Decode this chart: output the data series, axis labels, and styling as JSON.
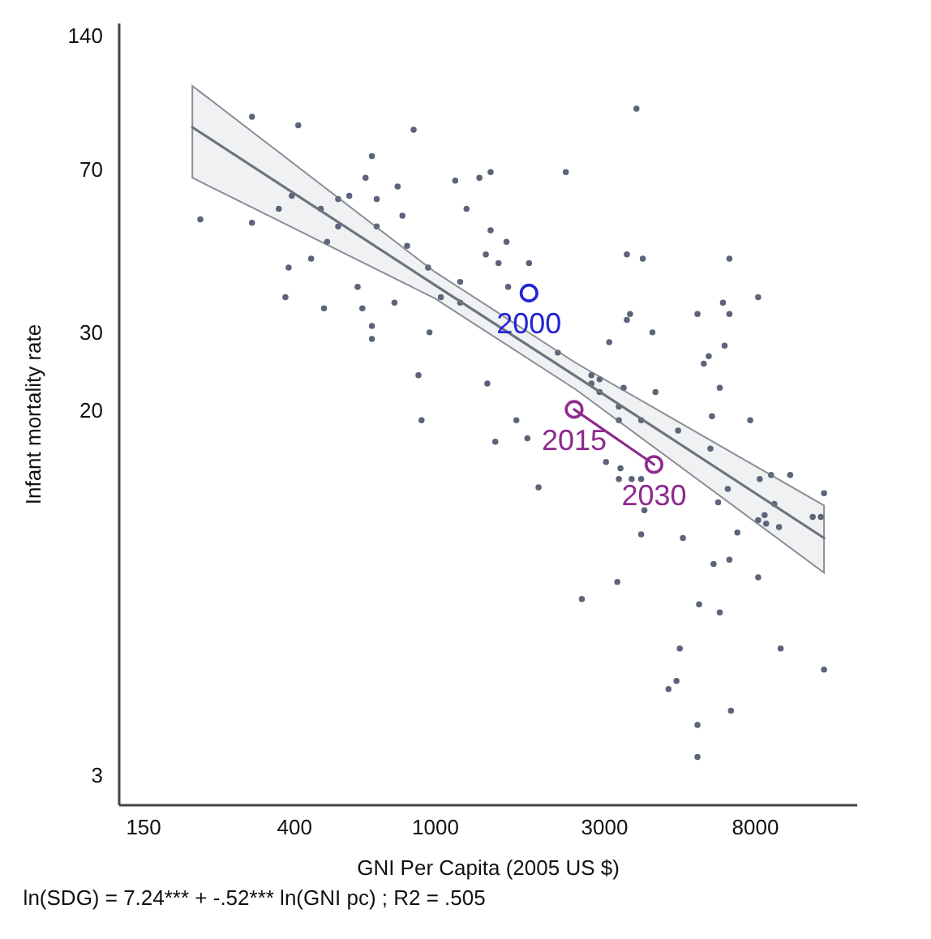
{
  "chart_data": {
    "type": "scatter",
    "xlabel": "GNI Per Capita (2005 US $)",
    "ylabel": "Infant mortality rate",
    "log": "xy",
    "grid": false,
    "marker": "circle",
    "xlim": [
      128,
      15500
    ],
    "xticks": [
      150,
      400,
      1000,
      3000,
      8000
    ],
    "ylim": [
      2.58,
      150
    ],
    "yticks": [
      3,
      20,
      30,
      70,
      140
    ],
    "annotations": [
      "ln(SDG) = 7.24*** + -.52*** ln(GNI pc) ; R2 = .505",
      {
        "text": "2000",
        "x": 1846,
        "y": 36.8
      },
      {
        "text": "2015",
        "x": 2475,
        "y": 20.1
      },
      {
        "text": "2030",
        "x": 4160,
        "y": 15.1
      }
    ],
    "series": [
      {
        "color": "#5b6479",
        "x": [
          305,
          412,
          872,
          665,
          638,
          786,
          1143,
          1337,
          1438,
          1230,
          218,
          305,
          363,
          395,
          477,
          534,
          574,
          686,
          534,
          686,
          811,
          497,
          836,
          1438,
          1595,
          1394,
          1514,
          387,
          448,
          958,
          1180,
          606,
          379,
          487,
          625,
          770,
          1041,
          1180,
          665,
          665,
          967,
          900,
          1408,
          918,
          1483,
          1700,
          3711,
          2345,
          1846,
          3487,
          3867,
          6790,
          1612,
          8186,
          6512,
          6790,
          5518,
          3560,
          3487,
          4117,
          3109,
          2226,
          6582,
          5937,
          5750,
          2770,
          2920,
          2770,
          3415,
          2920,
          6378,
          4200,
          3310,
          6063,
          7775,
          3827,
          3310,
          4866,
          1827,
          6000,
          3044,
          3345,
          3597,
          3827,
          3310,
          8270,
          8900,
          10080,
          1964,
          12560,
          6720,
          6311,
          9094,
          3907,
          8534,
          8186,
          8623,
          9376,
          11670,
          12300,
          7150,
          3827,
          5020,
          6126,
          6790,
          8186,
          3277,
          2602,
          5576,
          6378,
          4917,
          9474,
          12560,
          4815,
          4570,
          6859,
          5518,
          5518
        ],
        "values": [
          92,
          88,
          86,
          75,
          67,
          64,
          66,
          67,
          69,
          57,
          54,
          53,
          57,
          61,
          57,
          60,
          61,
          60,
          52,
          52,
          55,
          48,
          47,
          51,
          48,
          45,
          43,
          42,
          44,
          42,
          39,
          38,
          36,
          34,
          34,
          35,
          36,
          35,
          31,
          29,
          30,
          24,
          23,
          19,
          17,
          19,
          96,
          69,
          43,
          45,
          44,
          44,
          38,
          36,
          35,
          33,
          33,
          33,
          32,
          30,
          28.5,
          27,
          28,
          26.5,
          25.5,
          24,
          23.5,
          23,
          22.5,
          22,
          22.5,
          22,
          20.4,
          19.4,
          19,
          19,
          19,
          18,
          17.3,
          16.4,
          15.3,
          14.8,
          14,
          14,
          14,
          14,
          14.3,
          14.3,
          13.4,
          13,
          13.3,
          12.4,
          12.3,
          11.9,
          11.6,
          11.3,
          11.1,
          10.9,
          11.5,
          11.5,
          10.6,
          10.5,
          10.3,
          9,
          9.2,
          8.4,
          8.2,
          7.5,
          7.3,
          7,
          5.8,
          5.8,
          5.2,
          4.9,
          4.7,
          4.2,
          3.9,
          3.3
        ]
      },
      {
        "type": "line",
        "marker": "none",
        "line_style": "solid",
        "color": "#6e737d",
        "x": [
          207,
          1000,
          2500,
          12560
        ],
        "values": [
          87.1,
          38.4,
          23.9,
          10.3
        ],
        "lower": [
          67,
          35.8,
          22.3,
          8.6
        ],
        "upper": [
          108,
          41.1,
          25.6,
          12.2
        ]
      },
      {
        "color": "#2424d8",
        "x": [
          1846
        ],
        "values": [
          36.8
        ]
      },
      {
        "type": "line",
        "marker": "circle",
        "line_style": "solid",
        "color": "#8e2a8e",
        "x": [
          2475,
          4160
        ],
        "values": [
          20.1,
          15.1
        ]
      }
    ]
  }
}
